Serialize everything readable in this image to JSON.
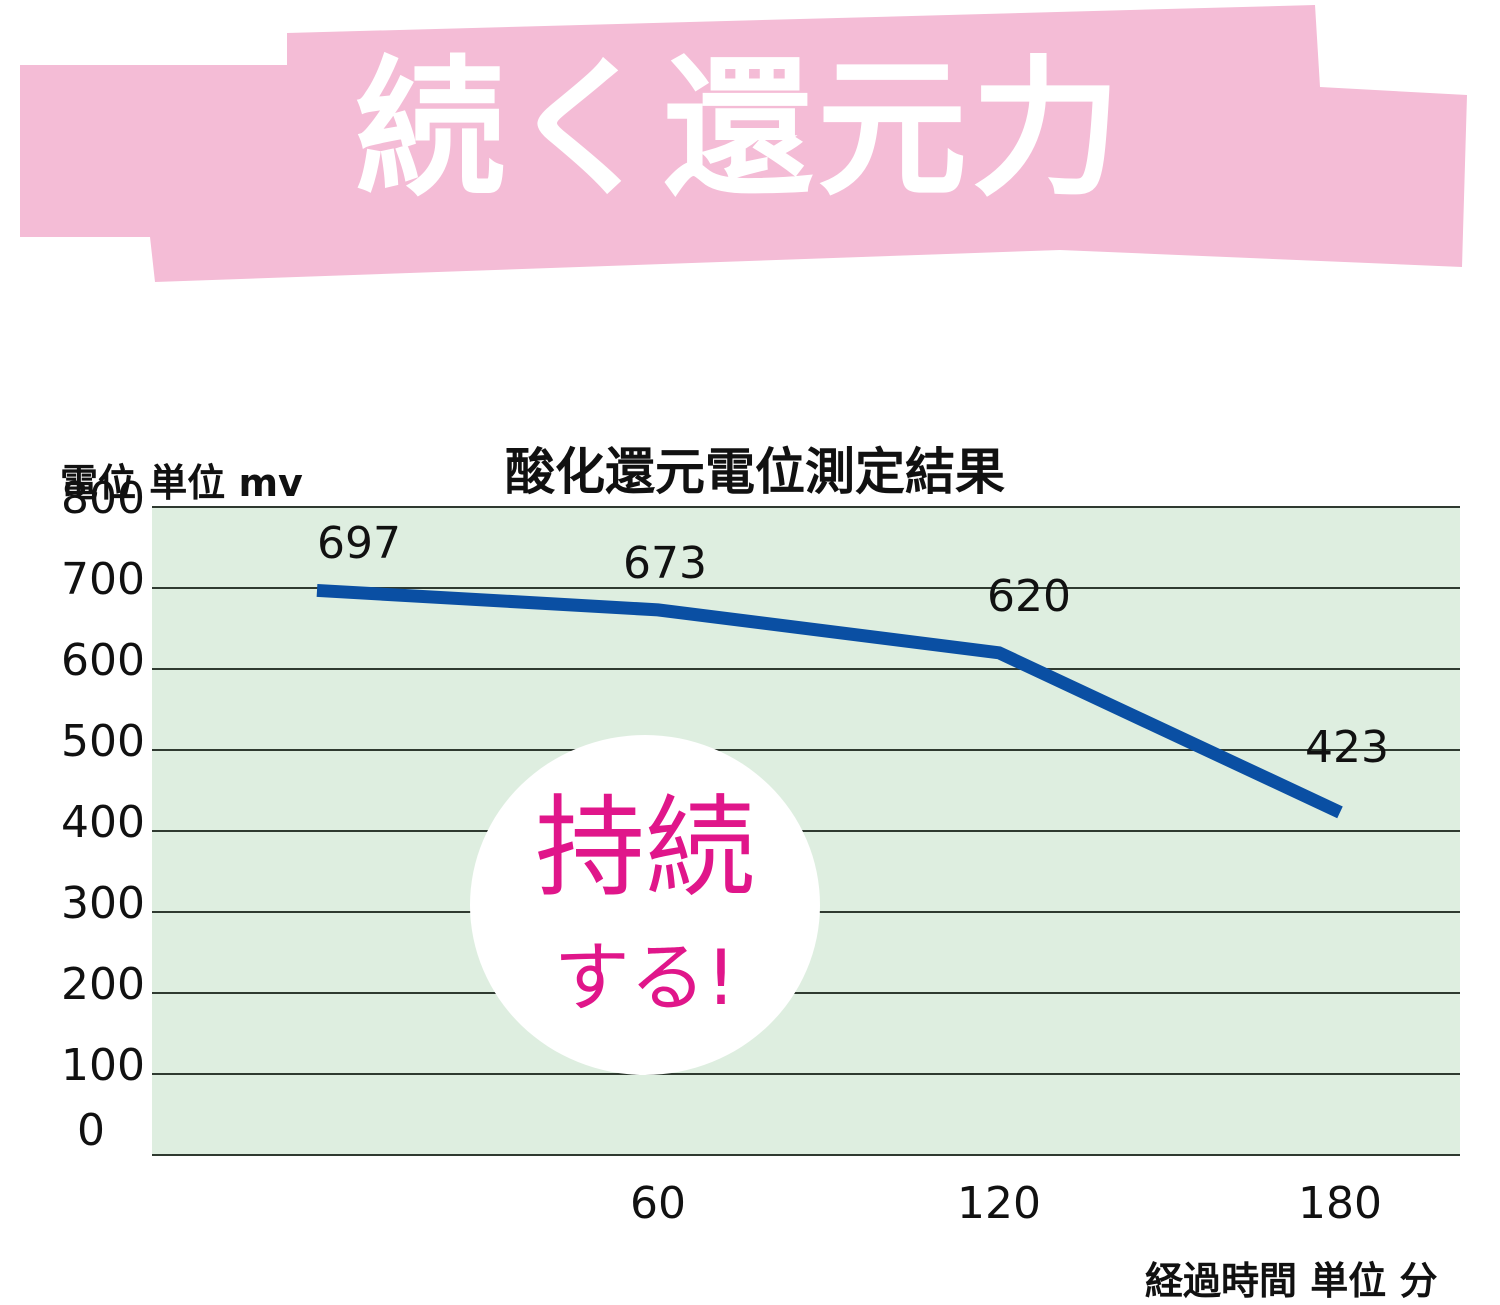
{
  "banner": {
    "text": "続く還元力",
    "bg_color": "#f4bcd6",
    "text_color": "#ffffff"
  },
  "badge": {
    "main": "持続",
    "sub": "する!",
    "text_color": "#e0168a"
  },
  "chart_data": {
    "type": "line",
    "title": "酸化還元電位測定結果",
    "ylabel": "電位 単位 mv",
    "xlabel": "経過時間 単位 分",
    "x": [
      0,
      60,
      120,
      180
    ],
    "x_tick_labels": [
      "60",
      "120",
      "180"
    ],
    "y_ticks": [
      0,
      100,
      200,
      300,
      400,
      500,
      600,
      700,
      800
    ],
    "ylim": [
      0,
      800
    ],
    "grid": true,
    "plot_bg": "#deeee0",
    "series": [
      {
        "name": "酸化還元電位",
        "color": "#0a4fa3",
        "values": [
          697,
          673,
          620,
          423
        ],
        "data_labels": [
          "697",
          "673",
          "620",
          "423"
        ]
      }
    ]
  }
}
